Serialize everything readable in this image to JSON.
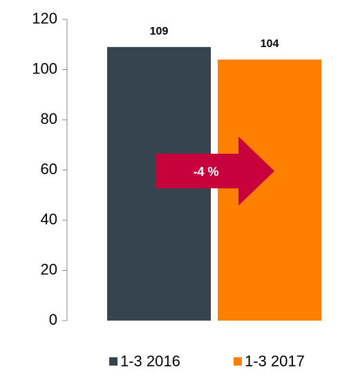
{
  "chart_data": {
    "type": "bar",
    "series": [
      {
        "name": "1-3 2016",
        "color": "#36444f",
        "values": [
          109
        ]
      },
      {
        "name": "1-3 2017",
        "color": "#ff8000",
        "values": [
          104
        ]
      }
    ],
    "annotation": "-4 %",
    "annotation_color": "#c8003c",
    "ylim": [
      0,
      120
    ],
    "yticks": [
      0,
      20,
      40,
      60,
      80,
      100,
      120
    ],
    "legend": "bottom"
  }
}
